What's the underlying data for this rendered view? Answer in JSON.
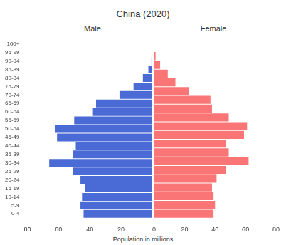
{
  "chart_data": {
    "type": "bar",
    "orientation": "horizontal",
    "title": "China (2020)",
    "x_label": "Population in millions",
    "categories": [
      "0-4",
      "5-9",
      "10-14",
      "15-19",
      "20-24",
      "25-29",
      "30-34",
      "35-39",
      "40-44",
      "45-49",
      "50-54",
      "55-59",
      "60-64",
      "65-69",
      "70-74",
      "75-79",
      "80-84",
      "85-89",
      "90-94",
      "95-99",
      "100+"
    ],
    "series": [
      {
        "name": "Male",
        "color": "#4a6bd6",
        "values": [
          44,
          46,
          45,
          43,
          46,
          51,
          66,
          51,
          49,
          61,
          62,
          50,
          38,
          36,
          21,
          12,
          6,
          2.5,
          0.5,
          0.1,
          0
        ]
      },
      {
        "name": "Female",
        "color": "#fa7676",
        "values": [
          39,
          40,
          39,
          38,
          41,
          47,
          62,
          49,
          47,
          59,
          61,
          49,
          38,
          37,
          23,
          14,
          9,
          4,
          1,
          0.2,
          0
        ]
      }
    ],
    "xlim": [
      0,
      80
    ],
    "xticks": [
      0,
      20,
      40,
      60,
      80
    ],
    "grid": false
  }
}
